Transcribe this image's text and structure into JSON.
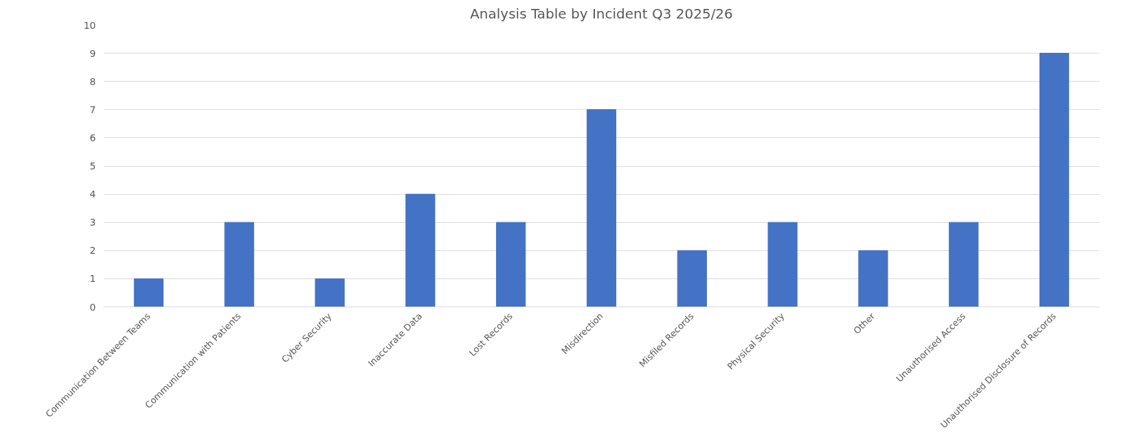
{
  "chart_data": {
    "type": "bar",
    "title": "Analysis Table by Incident Q3 2025/26",
    "categories": [
      "Communication Between Teams",
      "Communication with Patients",
      "Cyber Security",
      "Inaccurate Data",
      "Lost Records",
      "Misdirection",
      "Misfiled Records",
      "Physical Security",
      "Other",
      "Unauthorised Access",
      "Unauthorised Disclosure of Records"
    ],
    "values": [
      1,
      3,
      1,
      4,
      3,
      7,
      2,
      3,
      2,
      3,
      9
    ],
    "color": "#4472c4",
    "ylim": [
      0,
      10
    ],
    "yticks": [
      0,
      1,
      2,
      3,
      4,
      5,
      6,
      7,
      8,
      9,
      10
    ],
    "grid": "y"
  }
}
